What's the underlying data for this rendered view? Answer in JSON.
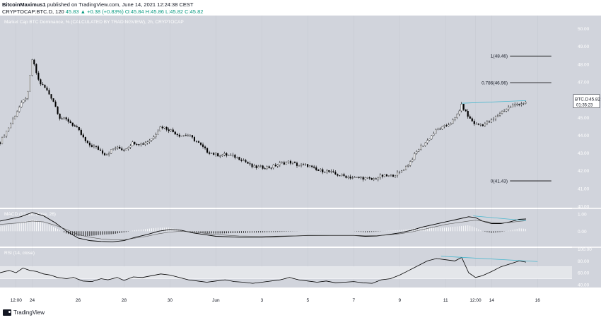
{
  "header": {
    "publisher": "BitcoinMaximus1",
    "published_text": "published on TradingView.com, June 14, 2021 12:24:38 CEST",
    "symbol_line": "CRYPTOCAP:BTC.D, 120",
    "ohlc": "45.83 ▲ +0.38 (+0.83%) O:45.84 H:45.86 L:45.82 C:45.82"
  },
  "footer": {
    "brand": "TradingView"
  },
  "chart_data": [
    {
      "type": "candlestick",
      "title": "Market Cap BTC Dominance, % (CALCULATED BY TRADINGVIEW), 2h, CRYPTOCAP",
      "ylim": [
        40.0,
        50.5
      ],
      "y_ticks": [
        "40.00",
        "41.00",
        "42.00",
        "43.00",
        "44.00",
        "45.00",
        "46.00",
        "47.00",
        "48.00",
        "49.00",
        "50.00"
      ],
      "x_ticks": [
        "12:00",
        "24",
        "26",
        "28",
        "30",
        "Jun",
        "3",
        "5",
        "7",
        "9",
        "11",
        "12:00",
        "14",
        "16"
      ],
      "x_tick_pos": [
        0.3,
        1.0,
        3.0,
        5.0,
        7.0,
        9.0,
        11.0,
        13.0,
        15.0,
        17.0,
        19.0,
        20.3,
        21.0,
        23.0
      ],
      "x_range": [
        -0.4,
        24.5
      ],
      "last_price_label": "BTC.D",
      "last_price": 45.82,
      "countdown": "01:35:23",
      "fib_levels": [
        {
          "label": "1(48.46)",
          "value": 48.46
        },
        {
          "label": "0.786(46.96)",
          "value": 46.96
        },
        {
          "label": "0(41.43)",
          "value": 41.43
        }
      ],
      "divergence_line": {
        "from": [
          19.7,
          45.8
        ],
        "to": [
          22.5,
          45.95
        ]
      },
      "path": [
        [
          -0.4,
          43.6
        ],
        [
          0.0,
          44.5
        ],
        [
          0.4,
          45.5
        ],
        [
          0.8,
          46.3
        ],
        [
          1.0,
          48.3
        ],
        [
          1.3,
          47.0
        ],
        [
          1.6,
          46.6
        ],
        [
          1.9,
          46.0
        ],
        [
          2.2,
          45.0
        ],
        [
          2.6,
          44.8
        ],
        [
          3.0,
          44.3
        ],
        [
          3.4,
          43.5
        ],
        [
          3.8,
          43.3
        ],
        [
          4.2,
          42.9
        ],
        [
          4.6,
          43.3
        ],
        [
          5.0,
          43.2
        ],
        [
          5.4,
          43.6
        ],
        [
          5.8,
          43.5
        ],
        [
          6.2,
          43.8
        ],
        [
          6.6,
          44.5
        ],
        [
          7.0,
          44.3
        ],
        [
          7.4,
          44.0
        ],
        [
          7.8,
          44.0
        ],
        [
          8.2,
          43.6
        ],
        [
          8.6,
          43.1
        ],
        [
          9.0,
          42.9
        ],
        [
          9.4,
          42.9
        ],
        [
          9.8,
          42.8
        ],
        [
          10.2,
          42.6
        ],
        [
          10.6,
          42.2
        ],
        [
          11.0,
          42.2
        ],
        [
          11.4,
          42.2
        ],
        [
          11.8,
          42.4
        ],
        [
          12.2,
          42.5
        ],
        [
          12.6,
          42.3
        ],
        [
          13.0,
          42.3
        ],
        [
          13.4,
          42.0
        ],
        [
          13.8,
          42.0
        ],
        [
          14.2,
          41.8
        ],
        [
          14.6,
          41.7
        ],
        [
          15.0,
          41.6
        ],
        [
          15.4,
          41.6
        ],
        [
          15.8,
          41.5
        ],
        [
          16.2,
          41.7
        ],
        [
          16.6,
          41.7
        ],
        [
          17.0,
          41.9
        ],
        [
          17.4,
          42.4
        ],
        [
          17.8,
          43.2
        ],
        [
          18.2,
          43.7
        ],
        [
          18.6,
          44.3
        ],
        [
          19.0,
          44.5
        ],
        [
          19.4,
          44.9
        ],
        [
          19.7,
          45.7
        ],
        [
          20.0,
          45.0
        ],
        [
          20.3,
          44.6
        ],
        [
          20.6,
          44.6
        ],
        [
          21.0,
          44.8
        ],
        [
          21.4,
          45.3
        ],
        [
          21.8,
          45.6
        ],
        [
          22.2,
          45.8
        ],
        [
          22.5,
          45.82
        ]
      ]
    },
    {
      "type": "line",
      "title": "MACD (12, 26, close, 26)",
      "ylim": [
        -0.9,
        1.3
      ],
      "y_ticks": [
        "0.00",
        "1.00"
      ],
      "series": [
        {
          "values": [
            [
              -0.4,
              0.6
            ],
            [
              0.5,
              0.85
            ],
            [
              1.0,
              1.1
            ],
            [
              1.5,
              0.9
            ],
            [
              2.0,
              0.5
            ],
            [
              2.5,
              0.0
            ],
            [
              3.0,
              -0.4
            ],
            [
              3.5,
              -0.55
            ],
            [
              4.0,
              -0.6
            ],
            [
              4.5,
              -0.62
            ],
            [
              5.0,
              -0.55
            ],
            [
              5.5,
              -0.35
            ],
            [
              6.0,
              -0.2
            ],
            [
              6.5,
              0.0
            ],
            [
              7.0,
              0.1
            ],
            [
              7.5,
              0.05
            ],
            [
              8.0,
              -0.1
            ],
            [
              8.5,
              -0.2
            ],
            [
              9.0,
              -0.3
            ],
            [
              10.0,
              -0.35
            ],
            [
              11.0,
              -0.35
            ],
            [
              12.0,
              -0.3
            ],
            [
              13.0,
              -0.25
            ],
            [
              14.0,
              -0.25
            ],
            [
              15.0,
              -0.25
            ],
            [
              15.5,
              -0.3
            ],
            [
              16.0,
              -0.28
            ],
            [
              16.5,
              -0.2
            ],
            [
              17.0,
              -0.1
            ],
            [
              17.5,
              0.05
            ],
            [
              18.0,
              0.25
            ],
            [
              18.5,
              0.4
            ],
            [
              19.0,
              0.55
            ],
            [
              19.5,
              0.7
            ],
            [
              20.0,
              0.85
            ],
            [
              20.3,
              0.8
            ],
            [
              20.6,
              0.6
            ],
            [
              21.0,
              0.45
            ],
            [
              21.4,
              0.45
            ],
            [
              21.8,
              0.55
            ],
            [
              22.2,
              0.7
            ],
            [
              22.5,
              0.72
            ]
          ]
        },
        {
          "values": [
            [
              -0.4,
              0.4
            ],
            [
              0.5,
              0.5
            ],
            [
              1.0,
              0.6
            ],
            [
              1.5,
              0.55
            ],
            [
              2.0,
              0.35
            ],
            [
              2.5,
              0.1
            ],
            [
              3.0,
              -0.2
            ],
            [
              3.5,
              -0.35
            ],
            [
              4.0,
              -0.45
            ],
            [
              4.5,
              -0.5
            ],
            [
              5.0,
              -0.5
            ],
            [
              5.5,
              -0.4
            ],
            [
              6.0,
              -0.3
            ],
            [
              6.5,
              -0.15
            ],
            [
              7.0,
              -0.05
            ],
            [
              7.5,
              0.0
            ],
            [
              8.0,
              -0.05
            ],
            [
              8.5,
              -0.12
            ],
            [
              9.0,
              -0.2
            ],
            [
              10.0,
              -0.28
            ],
            [
              11.0,
              -0.3
            ],
            [
              12.0,
              -0.28
            ],
            [
              13.0,
              -0.26
            ],
            [
              14.0,
              -0.25
            ],
            [
              15.0,
              -0.25
            ],
            [
              16.0,
              -0.26
            ],
            [
              16.5,
              -0.22
            ],
            [
              17.0,
              -0.15
            ],
            [
              17.5,
              -0.05
            ],
            [
              18.0,
              0.1
            ],
            [
              18.5,
              0.25
            ],
            [
              19.0,
              0.4
            ],
            [
              19.5,
              0.5
            ],
            [
              20.0,
              0.6
            ],
            [
              20.3,
              0.65
            ],
            [
              20.6,
              0.6
            ],
            [
              21.0,
              0.52
            ],
            [
              21.4,
              0.48
            ],
            [
              21.8,
              0.52
            ],
            [
              22.2,
              0.58
            ],
            [
              22.5,
              0.62
            ]
          ]
        }
      ],
      "divergence_line": {
        "from": [
          20.2,
          0.9
        ],
        "to": [
          22.5,
          0.62
        ]
      }
    },
    {
      "type": "line",
      "title": "RSI (14, close)",
      "ylim": [
        35,
        102
      ],
      "y_ticks": [
        "40.00",
        "60.00",
        "80.00",
        "100.00"
      ],
      "bands": [
        50,
        70
      ],
      "values": [
        [
          -0.4,
          60
        ],
        [
          0.0,
          64
        ],
        [
          0.3,
          60
        ],
        [
          0.6,
          68
        ],
        [
          0.9,
          64
        ],
        [
          1.2,
          62
        ],
        [
          1.5,
          58
        ],
        [
          1.8,
          56
        ],
        [
          2.1,
          52
        ],
        [
          2.5,
          50
        ],
        [
          2.8,
          52
        ],
        [
          3.2,
          46
        ],
        [
          3.6,
          45
        ],
        [
          4.0,
          50
        ],
        [
          4.3,
          48
        ],
        [
          4.7,
          52
        ],
        [
          5.0,
          47
        ],
        [
          5.4,
          53
        ],
        [
          5.8,
          52
        ],
        [
          6.2,
          55
        ],
        [
          6.6,
          58
        ],
        [
          7.0,
          56
        ],
        [
          7.4,
          52
        ],
        [
          7.8,
          48
        ],
        [
          8.2,
          46
        ],
        [
          8.6,
          44
        ],
        [
          9.0,
          46
        ],
        [
          9.4,
          48
        ],
        [
          9.8,
          45
        ],
        [
          10.2,
          44
        ],
        [
          10.6,
          42
        ],
        [
          11.0,
          44
        ],
        [
          11.4,
          46
        ],
        [
          11.8,
          48
        ],
        [
          12.2,
          52
        ],
        [
          12.6,
          48
        ],
        [
          13.0,
          46
        ],
        [
          13.4,
          44
        ],
        [
          13.8,
          46
        ],
        [
          14.2,
          43
        ],
        [
          14.6,
          44
        ],
        [
          15.0,
          45
        ],
        [
          15.4,
          43
        ],
        [
          15.8,
          42
        ],
        [
          16.2,
          48
        ],
        [
          16.6,
          50
        ],
        [
          17.0,
          56
        ],
        [
          17.4,
          64
        ],
        [
          17.8,
          72
        ],
        [
          18.2,
          80
        ],
        [
          18.6,
          84
        ],
        [
          19.0,
          82
        ],
        [
          19.4,
          80
        ],
        [
          19.7,
          86
        ],
        [
          20.0,
          60
        ],
        [
          20.3,
          52
        ],
        [
          20.6,
          55
        ],
        [
          21.0,
          62
        ],
        [
          21.4,
          70
        ],
        [
          21.8,
          75
        ],
        [
          22.2,
          80
        ],
        [
          22.5,
          78
        ]
      ],
      "divergence_line": {
        "from": [
          18.8,
          88
        ],
        "to": [
          23.0,
          79
        ]
      }
    }
  ],
  "colors": {
    "background": "#d1d4dc",
    "up": "#ffffff",
    "down": "#000000",
    "divergence": "#4bb8cf",
    "axis_text": "#ffffff"
  }
}
